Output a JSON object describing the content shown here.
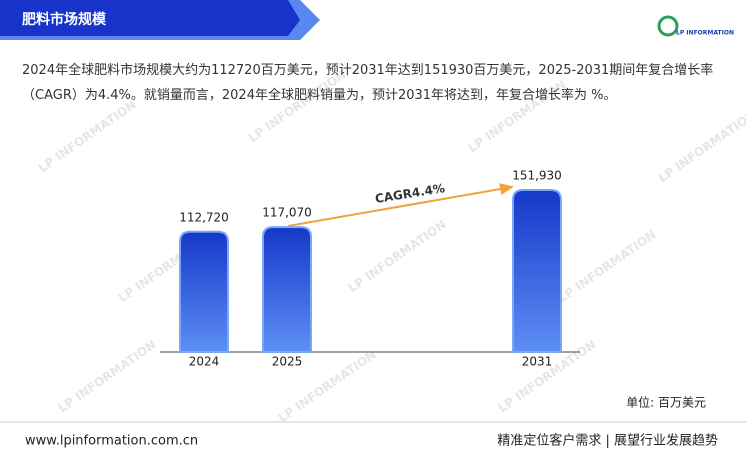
{
  "header": {
    "title": "肥料市场规模",
    "logo": "LP INFORMATION"
  },
  "description": "2024年全球肥料市场规模大约为112720百万美元，预计2031年达到151930百万美元，2025-2031期间年复合增长率（CAGR）为4.4%。就销量而言，2024年全球肥料销量为，预计2031年将达到，年复合增长率为 %。",
  "chart_data": {
    "type": "bar",
    "categories": [
      "2024",
      "2025",
      "2031"
    ],
    "values": [
      112720,
      117070,
      151930
    ],
    "value_labels": [
      "112,720",
      "117,070",
      "151,930"
    ],
    "color": "#2250dc",
    "annotation": "CAGR4.4%",
    "unit": "单位: 百万美元"
  },
  "watermark": "LP INFORMATION",
  "footer": {
    "url": "www.lpinformation.com.cn",
    "slogan": "精准定位客户需求 | 展望行业发展趋势"
  }
}
